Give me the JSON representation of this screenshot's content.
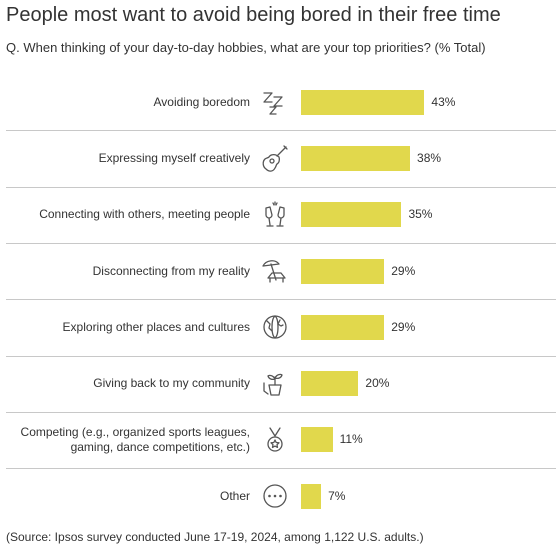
{
  "title": "People most want to avoid being bored in their free time",
  "subtitle": "Q. When thinking of your day-to-day hobbies, what are your top priorities? (% Total)",
  "source": "(Source: Ipsos survey conducted June 17-19, 2024, among 1,122 U.S. adults.)",
  "chart_data": {
    "type": "bar",
    "orientation": "horizontal",
    "title": "People most want to avoid being bored in their free time",
    "subtitle": "Q. When thinking of your day-to-day hobbies, what are your top priorities? (% Total)",
    "categories": [
      "Avoiding boredom",
      "Expressing myself creatively",
      "Connecting with others, meeting people",
      "Disconnecting from my reality",
      "Exploring other places and cultures",
      "Giving back to my community",
      "Competing (e.g., organized sports leagues, gaming, dance competitions, etc.)",
      "Other"
    ],
    "category_lines": [
      [
        "Avoiding boredom"
      ],
      [
        "Expressing myself creatively"
      ],
      [
        "Connecting with others, meeting people"
      ],
      [
        "Disconnecting from my reality"
      ],
      [
        "Exploring other places and cultures"
      ],
      [
        "Giving back to my community"
      ],
      [
        "Competing (e.g., organized sports leagues,",
        "gaming, dance competitions, etc.)"
      ],
      [
        "Other"
      ]
    ],
    "values": [
      43,
      38,
      35,
      29,
      29,
      20,
      11,
      7
    ],
    "value_labels": [
      "43%",
      "38%",
      "35%",
      "29%",
      "29%",
      "20%",
      "11%",
      "7%"
    ],
    "icons": [
      "zzz-icon",
      "guitar-icon",
      "champagne-toast-icon",
      "beach-umbrella-lounger-icon",
      "globe-icon",
      "plant-hands-icon",
      "medal-icon",
      "ellipsis-icon"
    ],
    "bar_color": "#E1D84C",
    "xlim": [
      0,
      100
    ],
    "grid": false,
    "legend": "none"
  }
}
